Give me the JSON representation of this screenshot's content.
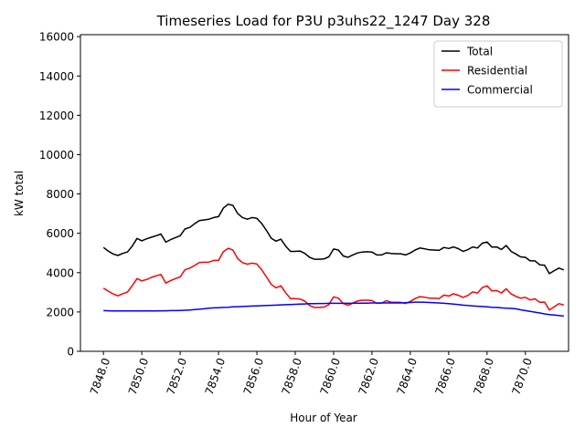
{
  "chart_data": {
    "type": "line",
    "title": "Timeseries Load for P3U p3uhs22_1247  Day 328",
    "xlabel": "Hour of Year",
    "ylabel": "kW total",
    "xlim": [
      7846.8,
      7872.25
    ],
    "ylim": [
      0,
      16100
    ],
    "xticks": [
      7848,
      7850,
      7852,
      7854,
      7856,
      7858,
      7860,
      7862,
      7864,
      7866,
      7868,
      7870
    ],
    "xtick_labels": [
      "7848.0",
      "7850.0",
      "7852.0",
      "7854.0",
      "7856.0",
      "7858.0",
      "7860.0",
      "7862.0",
      "7864.0",
      "7866.0",
      "7868.0",
      "7870.0"
    ],
    "yticks": [
      0,
      2000,
      4000,
      6000,
      8000,
      10000,
      12000,
      14000,
      16000
    ],
    "ytick_labels": [
      "0",
      "2000",
      "4000",
      "6000",
      "8000",
      "10000",
      "12000",
      "14000",
      "16000"
    ],
    "grid": false,
    "legend_position": "top-right",
    "x_start": 7848.0,
    "x_step": 0.25,
    "series": [
      {
        "name": "Total",
        "color": "#000000",
        "values": [
          5280,
          5100,
          4950,
          4870,
          4980,
          5050,
          5350,
          5740,
          5620,
          5720,
          5800,
          5880,
          5960,
          5550,
          5680,
          5780,
          5880,
          6220,
          6300,
          6480,
          6650,
          6680,
          6720,
          6800,
          6850,
          7280,
          7480,
          7420,
          7000,
          6800,
          6720,
          6800,
          6760,
          6500,
          6150,
          5750,
          5600,
          5700,
          5350,
          5080,
          5080,
          5100,
          4980,
          4780,
          4680,
          4680,
          4700,
          4800,
          5200,
          5150,
          4850,
          4780,
          4900,
          5000,
          5050,
          5060,
          5050,
          4900,
          4900,
          5010,
          4980,
          4960,
          4960,
          4900,
          5000,
          5150,
          5250,
          5210,
          5160,
          5150,
          5130,
          5280,
          5230,
          5310,
          5220,
          5080,
          5170,
          5310,
          5250,
          5500,
          5560,
          5300,
          5310,
          5180,
          5380,
          5080,
          4950,
          4800,
          4780,
          4600,
          4600,
          4400,
          4380,
          3950,
          4100,
          4230,
          4140
        ]
      },
      {
        "name": "Residential",
        "color": "#ff0000",
        "values": [
          3210,
          3060,
          2920,
          2820,
          2930,
          3010,
          3340,
          3700,
          3580,
          3650,
          3760,
          3840,
          3900,
          3470,
          3590,
          3700,
          3780,
          4150,
          4230,
          4360,
          4520,
          4530,
          4540,
          4620,
          4620,
          5060,
          5240,
          5150,
          4710,
          4510,
          4430,
          4480,
          4440,
          4150,
          3780,
          3400,
          3230,
          3330,
          2980,
          2680,
          2680,
          2660,
          2550,
          2330,
          2230,
          2230,
          2250,
          2370,
          2770,
          2700,
          2430,
          2340,
          2450,
          2560,
          2600,
          2600,
          2580,
          2440,
          2450,
          2570,
          2500,
          2490,
          2490,
          2430,
          2540,
          2680,
          2780,
          2750,
          2700,
          2700,
          2680,
          2860,
          2810,
          2930,
          2850,
          2740,
          2840,
          3020,
          2960,
          3240,
          3330,
          3070,
          3090,
          2970,
          3180,
          2920,
          2800,
          2700,
          2740,
          2610,
          2670,
          2490,
          2500,
          2100,
          2260,
          2420,
          2360
        ]
      },
      {
        "name": "Commercial",
        "color": "#0000ff",
        "values": [
          2070,
          2060,
          2050,
          2050,
          2050,
          2050,
          2050,
          2050,
          2050,
          2060,
          2050,
          2050,
          2060,
          2060,
          2070,
          2070,
          2080,
          2090,
          2100,
          2120,
          2140,
          2160,
          2190,
          2210,
          2220,
          2230,
          2240,
          2260,
          2270,
          2280,
          2290,
          2300,
          2310,
          2320,
          2330,
          2340,
          2350,
          2360,
          2370,
          2380,
          2390,
          2400,
          2410,
          2420,
          2420,
          2430,
          2430,
          2440,
          2440,
          2440,
          2440,
          2440,
          2440,
          2450,
          2450,
          2450,
          2460,
          2460,
          2460,
          2460,
          2460,
          2460,
          2460,
          2470,
          2480,
          2500,
          2500,
          2490,
          2480,
          2470,
          2460,
          2440,
          2420,
          2400,
          2380,
          2350,
          2330,
          2310,
          2290,
          2280,
          2260,
          2240,
          2230,
          2210,
          2190,
          2180,
          2160,
          2110,
          2070,
          2030,
          1990,
          1950,
          1900,
          1870,
          1840,
          1820,
          1790
        ]
      }
    ]
  }
}
